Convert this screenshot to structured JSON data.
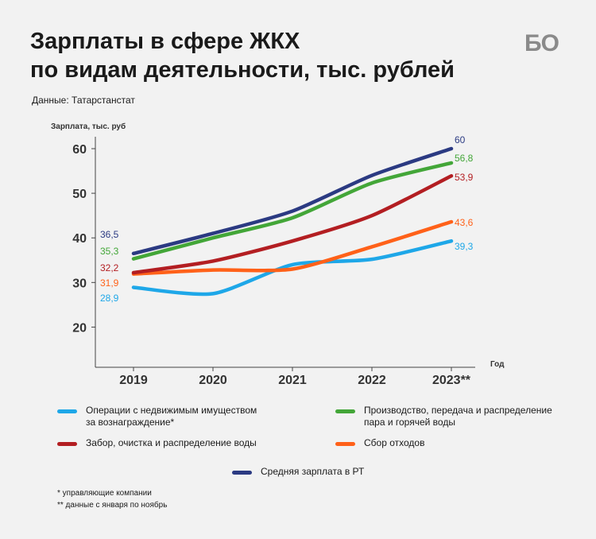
{
  "header": {
    "title_line1": "Зарплаты в сфере ЖКХ",
    "title_line2": "по видам деятельности, тыс. рублей",
    "source": "Данные: Татарстанстат",
    "logo": "БО"
  },
  "chart_data": {
    "type": "line",
    "ylabel": "Зарплата, тыс. руб",
    "xlabel": "Год",
    "categories": [
      "2019",
      "2020",
      "2021",
      "2022",
      "2023**"
    ],
    "ylim": [
      15,
      60
    ],
    "yticks": [
      20,
      30,
      40,
      50,
      60
    ],
    "grid": false,
    "series": [
      {
        "name": "Средняя зарплата в РТ",
        "color": "#2b3a82",
        "values": [
          36.5,
          41,
          46,
          54,
          60
        ],
        "start_label": "36,5",
        "end_label": "60"
      },
      {
        "name": "Производство, передача и распределение пара и горячей воды",
        "color": "#43a638",
        "values": [
          35.3,
          40,
          44.5,
          52.3,
          56.8
        ],
        "start_label": "35,3",
        "end_label": "56,8"
      },
      {
        "name": "Забор, очистка и распределение воды",
        "color": "#b31e22",
        "values": [
          32.2,
          34.8,
          39.3,
          45,
          53.9
        ],
        "start_label": "32,2",
        "end_label": "53,9"
      },
      {
        "name": "Сбор отходов",
        "color": "#ff6119",
        "values": [
          31.9,
          32.8,
          33,
          38,
          43.6
        ],
        "start_label": "31,9",
        "end_label": "43,6"
      },
      {
        "name": "Операции с недвижимым имуществом за вознаграждение*",
        "color": "#1ea7e8",
        "values": [
          28.9,
          27.5,
          34,
          35.2,
          39.3
        ],
        "start_label": "28,9",
        "end_label": "39,3"
      }
    ]
  },
  "legend": {
    "items": [
      {
        "label_lines": [
          "Операции с недвижимым имуществом",
          "за вознаграждение*"
        ],
        "color": "#1ea7e8"
      },
      {
        "label_lines": [
          "Производство, передача и распределение",
          "пара и горячей воды"
        ],
        "color": "#43a638"
      },
      {
        "label_lines": [
          "Забор, очистка и распределение воды"
        ],
        "color": "#b31e22"
      },
      {
        "label_lines": [
          "Сбор отходов"
        ],
        "color": "#ff6119"
      },
      {
        "label_lines": [
          "Средняя зарплата в РТ"
        ],
        "color": "#2b3a82"
      }
    ]
  },
  "notes": {
    "note1": "* управляющие компании",
    "note2": "** данные с января по ноябрь"
  }
}
